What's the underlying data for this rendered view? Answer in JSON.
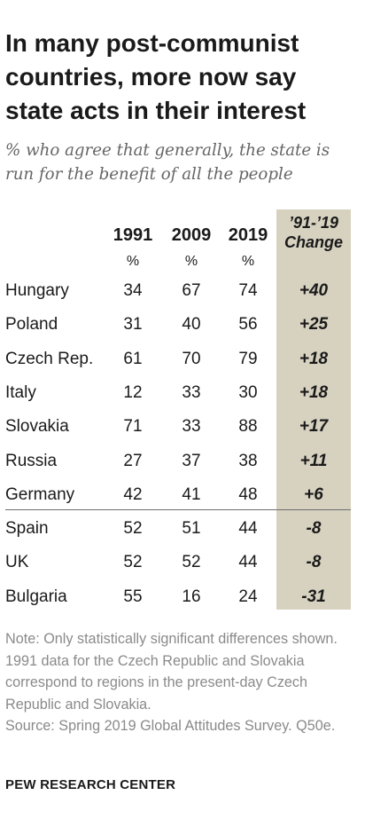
{
  "header": {
    "title": "In many post-communist countries, more now say state acts in their interest",
    "subtitle": "% who agree that generally, the state is run for the benefit of all the people"
  },
  "chart_data": {
    "type": "table",
    "columns": [
      {
        "label": "1991",
        "unit": "%"
      },
      {
        "label": "2009",
        "unit": "%"
      },
      {
        "label": "2019",
        "unit": "%"
      }
    ],
    "change_header": {
      "line1": "’91-’19",
      "line2": "Change"
    },
    "rows": [
      {
        "country": "Hungary",
        "v1991": "34",
        "v2009": "67",
        "v2019": "74",
        "change": "+40"
      },
      {
        "country": "Poland",
        "v1991": "31",
        "v2009": "40",
        "v2019": "56",
        "change": "+25"
      },
      {
        "country": "Czech Rep.",
        "v1991": "61",
        "v2009": "70",
        "v2019": "79",
        "change": "+18"
      },
      {
        "country": "Italy",
        "v1991": "12",
        "v2009": "33",
        "v2019": "30",
        "change": "+18"
      },
      {
        "country": "Slovakia",
        "v1991": "71",
        "v2009": "33",
        "v2019": "88",
        "change": "+17"
      },
      {
        "country": "Russia",
        "v1991": "27",
        "v2009": "37",
        "v2019": "38",
        "change": "+11"
      },
      {
        "country": "Germany",
        "v1991": "42",
        "v2009": "41",
        "v2019": "48",
        "change": "+6"
      },
      {
        "country": "Spain",
        "v1991": "52",
        "v2009": "51",
        "v2019": "44",
        "change": "-8"
      },
      {
        "country": "UK",
        "v1991": "52",
        "v2009": "52",
        "v2019": "44",
        "change": "-8"
      },
      {
        "country": "Bulgaria",
        "v1991": "55",
        "v2009": "16",
        "v2019": "24",
        "change": "-31"
      }
    ],
    "colors": {
      "change_column": "#d7d2c0",
      "text": "#1a1a1a",
      "note": "#8a8a8a"
    }
  },
  "footer": {
    "note": "Note: Only statistically significant differences shown. 1991 data for the Czech Republic and Slovakia correspond to regions in the present-day Czech Republic and Slovakia.",
    "source": "Source: Spring 2019 Global Attitudes Survey. Q50e.",
    "brand": "PEW RESEARCH CENTER"
  }
}
